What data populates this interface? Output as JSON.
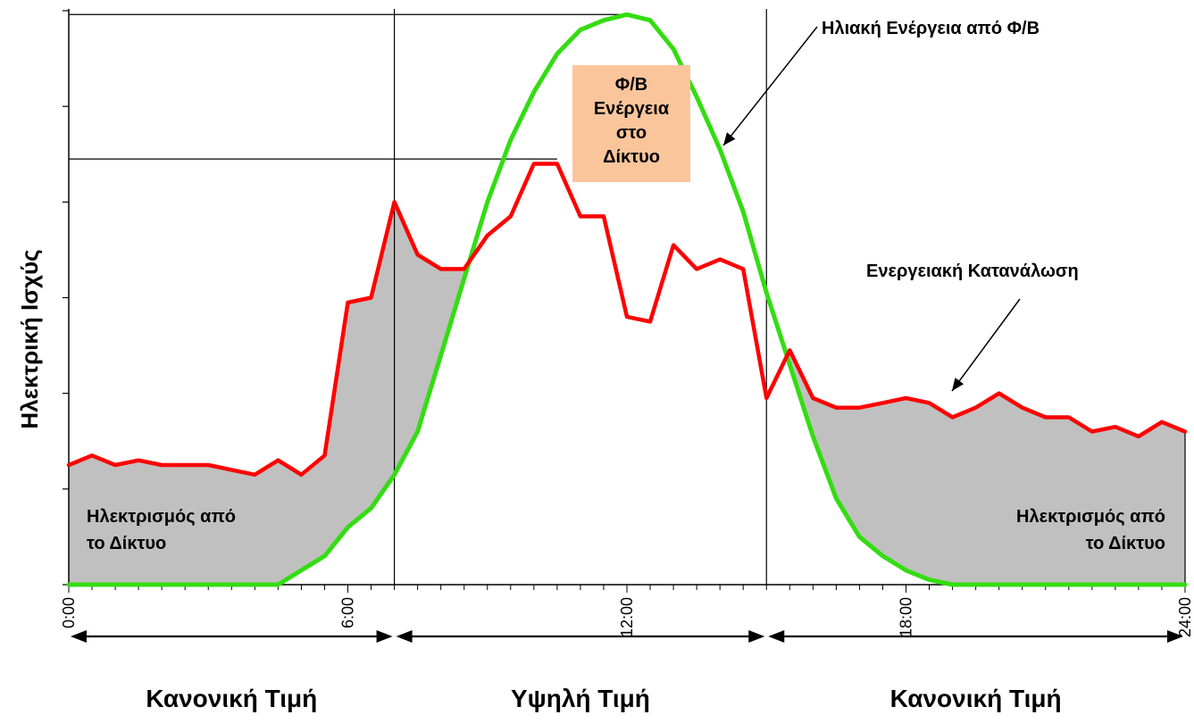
{
  "chart_data": {
    "type": "area",
    "ylabel": "Ηλεκτρική Ισχύς",
    "xlim": [
      0,
      24
    ],
    "ylim": [
      0,
      6
    ],
    "grid": false,
    "x_ticks": [
      "0:00",
      "6:00",
      "12:00",
      "18:00",
      "24:00"
    ],
    "x_tick_values": [
      0,
      6,
      12,
      18,
      24
    ],
    "y_tick_values": [
      0,
      1,
      2,
      3,
      4,
      5,
      6
    ],
    "series": [
      {
        "name": "Ενεργειακή Κατανάλωση",
        "color": "#ff0000",
        "fill_below_color": "#c0c0c0",
        "x": [
          0,
          0.5,
          1,
          1.5,
          2,
          2.5,
          3,
          3.5,
          4,
          4.5,
          5,
          5.5,
          6,
          6.5,
          7,
          7.5,
          8,
          8.5,
          9,
          9.5,
          10,
          10.5,
          11,
          11.5,
          12,
          12.5,
          13,
          13.5,
          14,
          14.5,
          15,
          15.5,
          16,
          16.5,
          17,
          17.5,
          18,
          18.5,
          19,
          19.5,
          20,
          20.5,
          21,
          21.5,
          22,
          22.5,
          23,
          23.5,
          24
        ],
        "values": [
          1.25,
          1.35,
          1.25,
          1.3,
          1.25,
          1.25,
          1.25,
          1.2,
          1.15,
          1.3,
          1.15,
          1.35,
          2.95,
          3.0,
          4.0,
          3.45,
          3.3,
          3.3,
          3.65,
          3.85,
          4.4,
          4.4,
          3.85,
          3.85,
          2.8,
          2.75,
          3.55,
          3.3,
          3.4,
          3.3,
          1.95,
          2.45,
          1.95,
          1.85,
          1.85,
          1.9,
          1.95,
          1.9,
          1.75,
          1.85,
          2.0,
          1.85,
          1.75,
          1.75,
          1.6,
          1.65,
          1.55,
          1.7,
          1.6
        ]
      },
      {
        "name": "Ηλιακή Ενέργεια από Φ/Β",
        "color": "#33dd11",
        "x": [
          0,
          4.5,
          5,
          5.5,
          6,
          6.5,
          7,
          7.5,
          8,
          8.5,
          9,
          9.5,
          10,
          10.5,
          11,
          11.5,
          12,
          12.5,
          13,
          13.5,
          14,
          14.5,
          15,
          15.5,
          16,
          16.5,
          17,
          17.5,
          18,
          18.5,
          19,
          19.5,
          20,
          20.5,
          24
        ],
        "values": [
          0,
          0,
          0.15,
          0.3,
          0.6,
          0.8,
          1.15,
          1.6,
          2.4,
          3.2,
          4.0,
          4.65,
          5.15,
          5.55,
          5.8,
          5.9,
          5.96,
          5.9,
          5.6,
          5.1,
          4.55,
          3.9,
          3.05,
          2.3,
          1.55,
          0.9,
          0.5,
          0.3,
          0.15,
          0.05,
          0,
          0,
          0,
          0,
          0
        ]
      }
    ],
    "reference_lines": {
      "vertical_x": [
        7.0,
        15.0
      ],
      "horizontal": [
        {
          "y": 5.96,
          "x_to": 12.0
        },
        {
          "y": 4.45,
          "x_to": 10.5
        }
      ]
    },
    "annotations": {
      "grid_in_left": "Ηλεκτρισμός από\nτο Δίκτυο",
      "grid_in_right": "Ηλεκτρισμός από\nτο Δίκτυο",
      "pv_to_grid": "Φ/Β\nΕνέργεια\nστο\nΔίκτυο",
      "pv_to_grid_box_color": "#fbc59c",
      "solar_label": "Ηλιακή Ενέργεια από Φ/Β",
      "consumption_label": "Ενεργειακή Κατανάλωση"
    },
    "tariff_bands": [
      {
        "label": "Κανονική Τιμή",
        "from": 0,
        "to": 7.0
      },
      {
        "label": "Υψηλή Τιμή",
        "from": 7.0,
        "to": 15.0
      },
      {
        "label": "Κανονική Τιμή",
        "from": 15.0,
        "to": 24
      }
    ]
  }
}
